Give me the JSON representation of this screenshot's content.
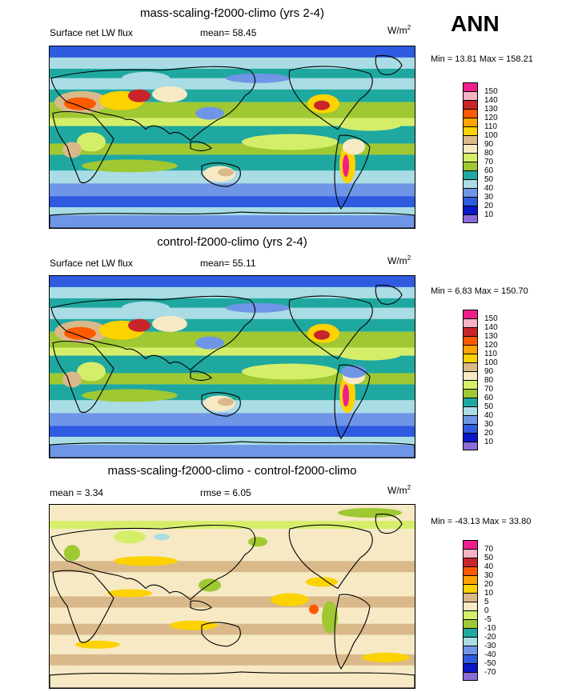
{
  "season": "ANN",
  "colors": {
    "abs_scale": [
      "#8B6CD8",
      "#0A18C8",
      "#2E5BE0",
      "#6F96E6",
      "#A9DCE4",
      "#1FA8A0",
      "#9FC832",
      "#D4EE6A",
      "#F6E9C4",
      "#D9B98A",
      "#FCD200",
      "#FFA200",
      "#FF5A00",
      "#C8242A",
      "#F6B3C6",
      "#F01E8C"
    ],
    "diff_scale": [
      "#8B6CD8",
      "#0A18C8",
      "#2E5BE0",
      "#6F96E6",
      "#A9DCE4",
      "#1FA8A0",
      "#9FC832",
      "#D4EE6A",
      "#F6E9C4",
      "#D9B98A",
      "#FCD200",
      "#FFA200",
      "#FF5A00",
      "#C8242A",
      "#F6B3C6",
      "#F01E8C"
    ]
  },
  "panels": [
    {
      "title": "mass-scaling-f2000-climo (yrs 2-4)",
      "left_label": "Surface net LW flux",
      "mean_label": "mean=  58.45",
      "units": "W/m",
      "units_sup": "2",
      "minmax": "Min =  13.81 Max = 158.21",
      "levels": [
        "150",
        "140",
        "130",
        "120",
        "110",
        "100",
        "90",
        "80",
        "70",
        "60",
        "50",
        "40",
        "30",
        "20",
        "10"
      ]
    },
    {
      "title": "control-f2000-climo (yrs 2-4)",
      "left_label": "Surface net LW flux",
      "mean_label": "mean=  55.11",
      "units": "W/m",
      "units_sup": "2",
      "minmax": "Min =   6.83 Max = 150.70",
      "levels": [
        "150",
        "140",
        "130",
        "120",
        "110",
        "100",
        "90",
        "80",
        "70",
        "60",
        "50",
        "40",
        "30",
        "20",
        "10"
      ]
    },
    {
      "title": "mass-scaling-f2000-climo - control-f2000-climo",
      "left_label": "mean =   3.34",
      "mean_label": "rmse =   6.05",
      "units": "W/m",
      "units_sup": "2",
      "minmax": "Min = -43.13 Max =  33.80",
      "levels": [
        "70",
        "50",
        "40",
        "30",
        "20",
        "10",
        "5",
        "0",
        "-5",
        "-10",
        "-20",
        "-30",
        "-40",
        "-50",
        "-70"
      ]
    }
  ]
}
